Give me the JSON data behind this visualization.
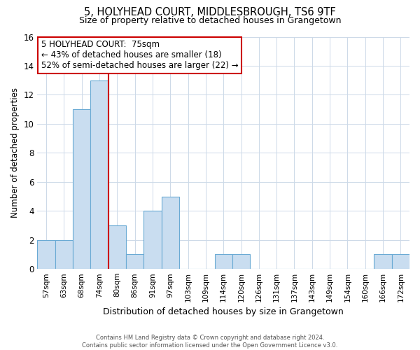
{
  "title": "5, HOLYHEAD COURT, MIDDLESBROUGH, TS6 9TF",
  "subtitle": "Size of property relative to detached houses in Grangetown",
  "xlabel": "Distribution of detached houses by size in Grangetown",
  "ylabel": "Number of detached properties",
  "bar_labels": [
    "57sqm",
    "63sqm",
    "68sqm",
    "74sqm",
    "80sqm",
    "86sqm",
    "91sqm",
    "97sqm",
    "103sqm",
    "109sqm",
    "114sqm",
    "120sqm",
    "126sqm",
    "131sqm",
    "137sqm",
    "143sqm",
    "149sqm",
    "154sqm",
    "160sqm",
    "166sqm",
    "172sqm"
  ],
  "bar_values": [
    2,
    2,
    11,
    13,
    3,
    1,
    4,
    5,
    0,
    0,
    1,
    1,
    0,
    0,
    0,
    0,
    0,
    0,
    0,
    1,
    1
  ],
  "bar_color": "#c9ddf0",
  "bar_edge_color": "#6aaad4",
  "vline_x_index": 3,
  "vline_color": "#cc0000",
  "annotation_title": "5 HOLYHEAD COURT:  75sqm",
  "annotation_line1": "← 43% of detached houses are smaller (18)",
  "annotation_line2": "52% of semi-detached houses are larger (22) →",
  "annotation_box_color": "#ffffff",
  "annotation_box_edge": "#cc0000",
  "ylim": [
    0,
    16
  ],
  "yticks": [
    0,
    2,
    4,
    6,
    8,
    10,
    12,
    14,
    16
  ],
  "footer_line1": "Contains HM Land Registry data © Crown copyright and database right 2024.",
  "footer_line2": "Contains public sector information licensed under the Open Government Licence v3.0.",
  "bg_color": "#ffffff",
  "grid_color": "#ccd9e8"
}
